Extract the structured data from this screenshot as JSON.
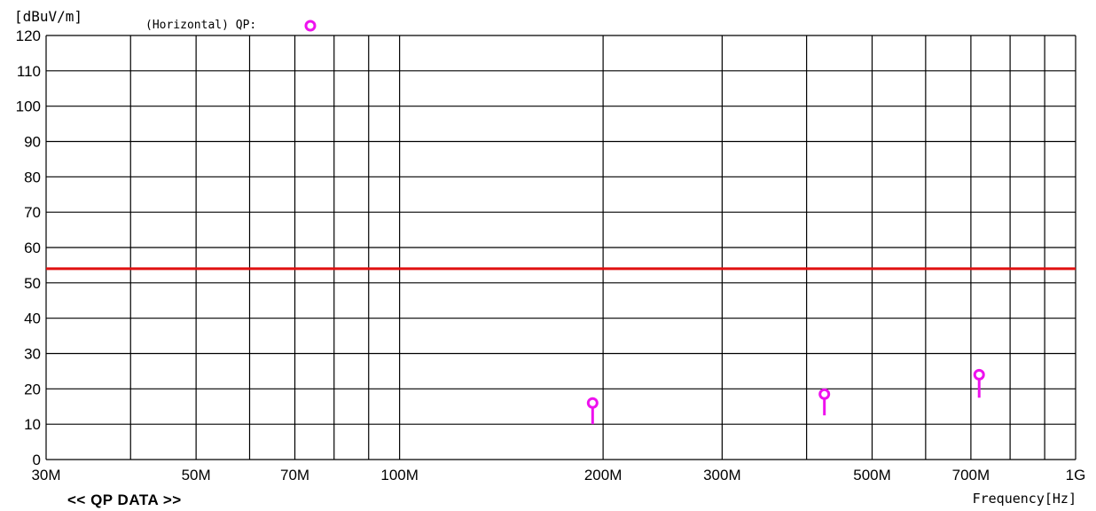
{
  "header": {
    "y_unit": "[dBuV/m]",
    "legend_text": "(Horizontal) QP:"
  },
  "footer": {
    "section_title": "<< QP DATA >>",
    "x_unit": "Frequency[Hz]"
  },
  "colors": {
    "limit_line": "#e01010",
    "marker": "#ee11ee",
    "grid": "#000000"
  },
  "chart_data": {
    "type": "scatter",
    "title": "",
    "xlabel": "Frequency[Hz]",
    "ylabel": "[dBuV/m]",
    "x_scale": "log",
    "xlim": [
      30,
      1000
    ],
    "ylim": [
      0,
      120
    ],
    "grid": true,
    "x_tick_labels": [
      {
        "value": 30,
        "label": "30M"
      },
      {
        "value": 50,
        "label": "50M"
      },
      {
        "value": 70,
        "label": "70M"
      },
      {
        "value": 100,
        "label": "100M"
      },
      {
        "value": 200,
        "label": "200M"
      },
      {
        "value": 300,
        "label": "300M"
      },
      {
        "value": 500,
        "label": "500M"
      },
      {
        "value": 700,
        "label": "700M"
      },
      {
        "value": 1000,
        "label": "1G"
      }
    ],
    "x_gridlines": [
      30,
      40,
      50,
      60,
      70,
      80,
      90,
      100,
      200,
      300,
      400,
      500,
      600,
      700,
      800,
      900,
      1000
    ],
    "y_ticks": [
      0,
      10,
      20,
      30,
      40,
      50,
      60,
      70,
      80,
      90,
      100,
      110,
      120
    ],
    "limit_line": {
      "value": 54
    },
    "series": [
      {
        "name": "QP",
        "marker": "circle-with-stem",
        "points": [
          {
            "x": 193,
            "y": 16,
            "stem_bottom": 10
          },
          {
            "x": 425,
            "y": 18.5,
            "stem_bottom": 12.5
          },
          {
            "x": 720,
            "y": 24,
            "stem_bottom": 17.5
          }
        ]
      }
    ]
  }
}
